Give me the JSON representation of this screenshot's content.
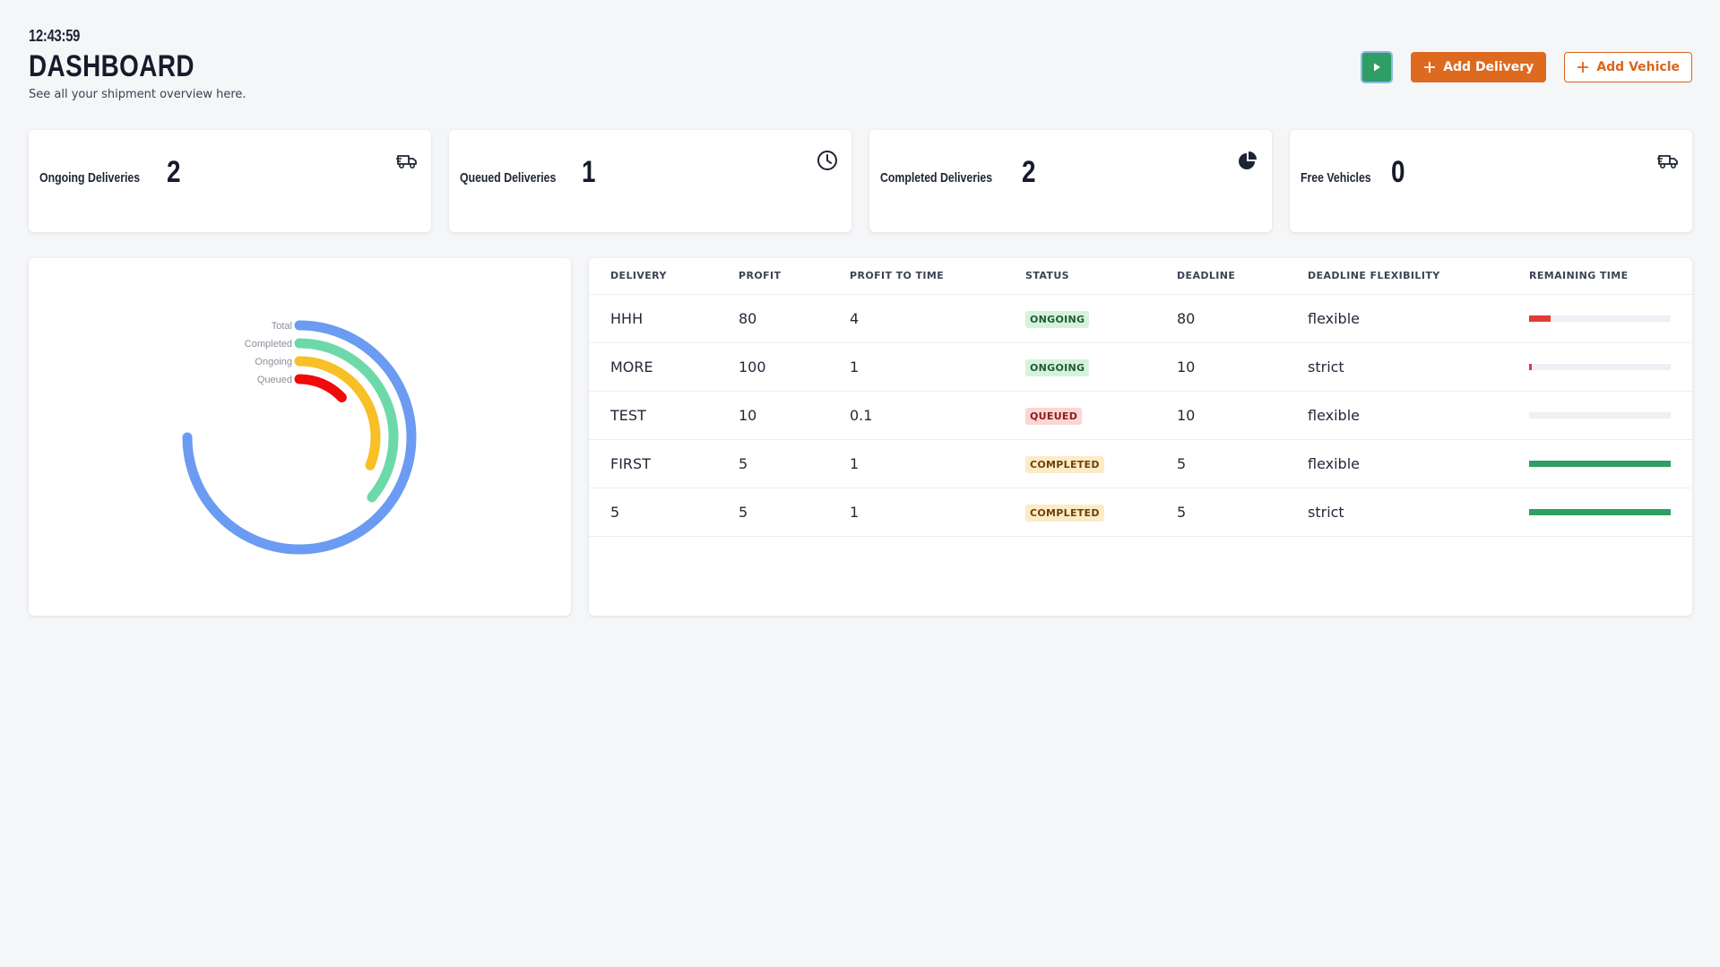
{
  "header": {
    "clock": "12:43:59",
    "title": "DASHBOARD",
    "subtitle": "See all your shipment overview here."
  },
  "actions": {
    "play_icon": "play-icon",
    "add_delivery_label": "Add Delivery",
    "add_vehicle_label": "Add Vehicle",
    "accent_color": "#de6a1f",
    "play_color": "#2f9e65"
  },
  "stats": [
    {
      "label": "Ongoing Deliveries",
      "value": "2",
      "icon": "truck-icon"
    },
    {
      "label": "Queued Deliveries",
      "value": "1",
      "icon": "clock-icon"
    },
    {
      "label": "Completed Deliveries",
      "value": "2",
      "icon": "pie-chart-icon"
    },
    {
      "label": "Free Vehicles",
      "value": "0",
      "icon": "truck-icon"
    }
  ],
  "chart_data": {
    "type": "radial-bar",
    "series": [
      {
        "name": "Total",
        "value": 75,
        "color": "#6b9bf2"
      },
      {
        "name": "Completed",
        "value": 36,
        "color": "#6dd9a8"
      },
      {
        "name": "Ongoing",
        "value": 31,
        "color": "#f8bf26"
      },
      {
        "name": "Queued",
        "value": 13,
        "color": "#f20a0a"
      }
    ],
    "max": 100
  },
  "table": {
    "columns": [
      "DELIVERY",
      "PROFIT",
      "PROFIT TO TIME",
      "STATUS",
      "DEADLINE",
      "DEADLINE FLEXIBILITY",
      "REMAINING TIME"
    ],
    "rows": [
      {
        "delivery": "HHH",
        "profit": "80",
        "profit_to_time": "4",
        "status": "ONGOING",
        "status_kind": "ongoing",
        "deadline": "80",
        "flexibility": "flexible",
        "remaining": 0.15,
        "bar_color": "#e03a3a"
      },
      {
        "delivery": "MORE",
        "profit": "100",
        "profit_to_time": "1",
        "status": "ONGOING",
        "status_kind": "ongoing",
        "deadline": "10",
        "flexibility": "strict",
        "remaining": 0.02,
        "bar_color": "#e03a3a"
      },
      {
        "delivery": "TEST",
        "profit": "10",
        "profit_to_time": "0.1",
        "status": "QUEUED",
        "status_kind": "queued",
        "deadline": "10",
        "flexibility": "flexible",
        "remaining": 0,
        "bar_color": "#e03a3a"
      },
      {
        "delivery": "FIRST",
        "profit": "5",
        "profit_to_time": "1",
        "status": "COMPLETED",
        "status_kind": "completed",
        "deadline": "5",
        "flexibility": "flexible",
        "remaining": 1,
        "bar_color": "#2f9e65"
      },
      {
        "delivery": "5",
        "profit": "5",
        "profit_to_time": "1",
        "status": "COMPLETED",
        "status_kind": "completed",
        "deadline": "5",
        "flexibility": "strict",
        "remaining": 1,
        "bar_color": "#2f9e65"
      }
    ]
  }
}
